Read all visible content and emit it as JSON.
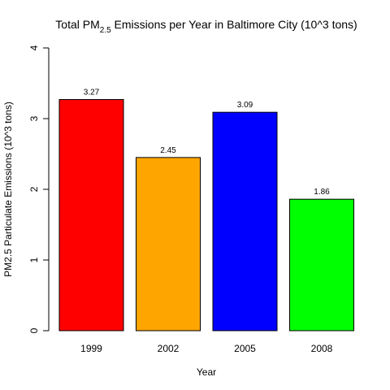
{
  "chart_data": {
    "type": "bar",
    "title": {
      "prefix": "Total PM",
      "subscript": "2.5",
      "suffix": " Emissions per Year in Baltimore City (10^3 tons)"
    },
    "xlabel": "Year",
    "ylabel": "PM2.5 Particulate Emissions (10^3 tons)",
    "categories": [
      "1999",
      "2002",
      "2005",
      "2008"
    ],
    "values": [
      3.27,
      2.45,
      3.09,
      1.86
    ],
    "value_labels": [
      "3.27",
      "2.45",
      "3.09",
      "1.86"
    ],
    "colors": [
      "#ff0000",
      "#ffa500",
      "#0000ff",
      "#00ff00"
    ],
    "ylim": [
      0,
      4
    ],
    "yticks": [
      0,
      1,
      2,
      3,
      4
    ],
    "ytick_labels": [
      "0",
      "1",
      "2",
      "3",
      "4"
    ],
    "grid": false,
    "legend": false
  }
}
